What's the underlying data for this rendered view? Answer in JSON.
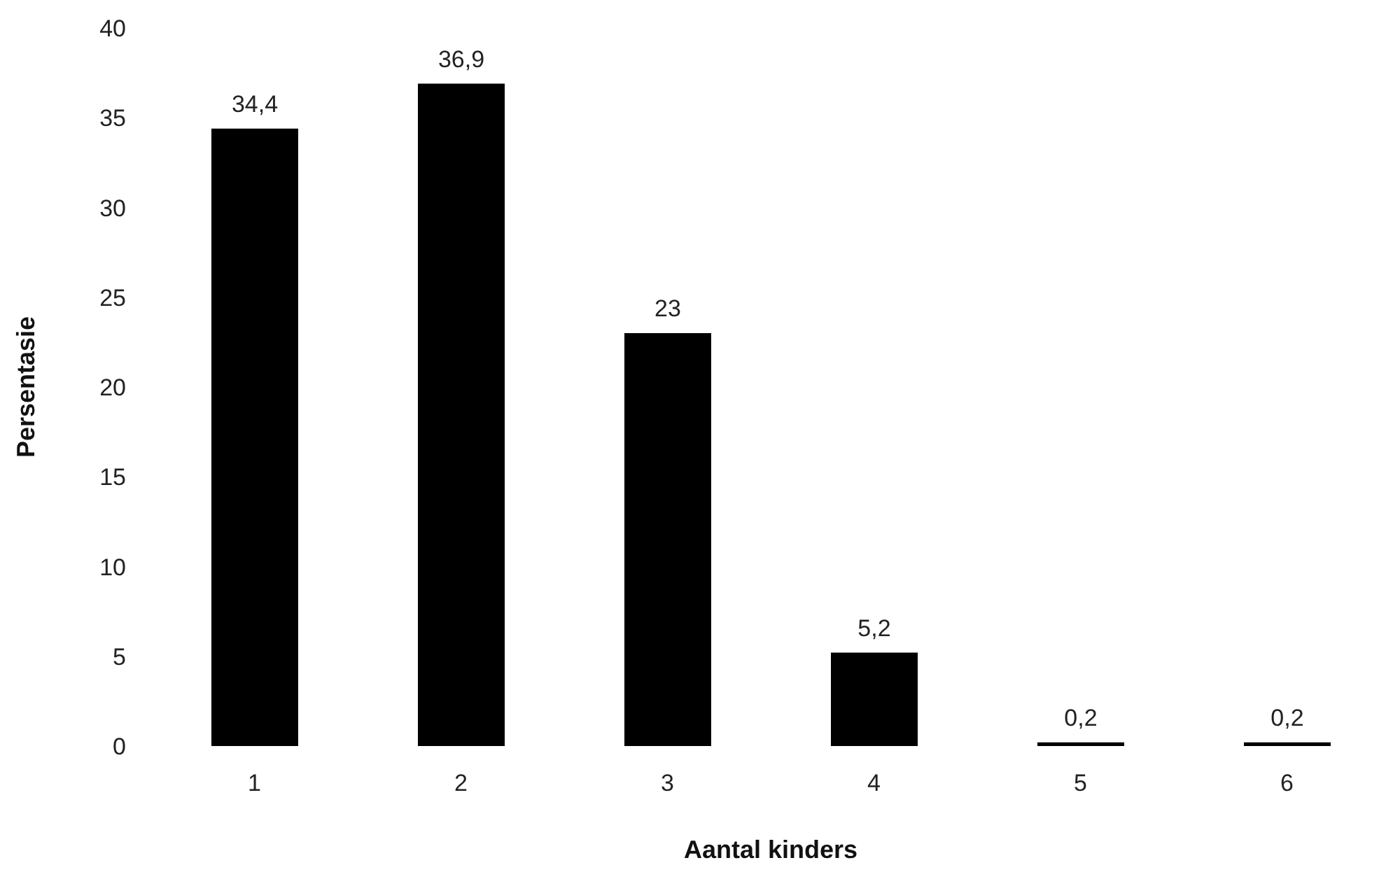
{
  "chart_data": {
    "type": "bar",
    "xlabel": "Aantal kinders",
    "ylabel": "Persentasie",
    "categories": [
      "1",
      "2",
      "3",
      "4",
      "5",
      "6"
    ],
    "values": [
      34.4,
      36.9,
      23,
      5.2,
      0.2,
      0.2
    ],
    "value_labels": [
      "34,4",
      "36,9",
      "23",
      "5,2",
      "0,2",
      "0,2"
    ],
    "color": "#000000",
    "ylim": [
      0,
      40
    ],
    "yticks": [
      0,
      5,
      10,
      15,
      20,
      25,
      30,
      35,
      40
    ],
    "grid": false,
    "legend": false
  }
}
